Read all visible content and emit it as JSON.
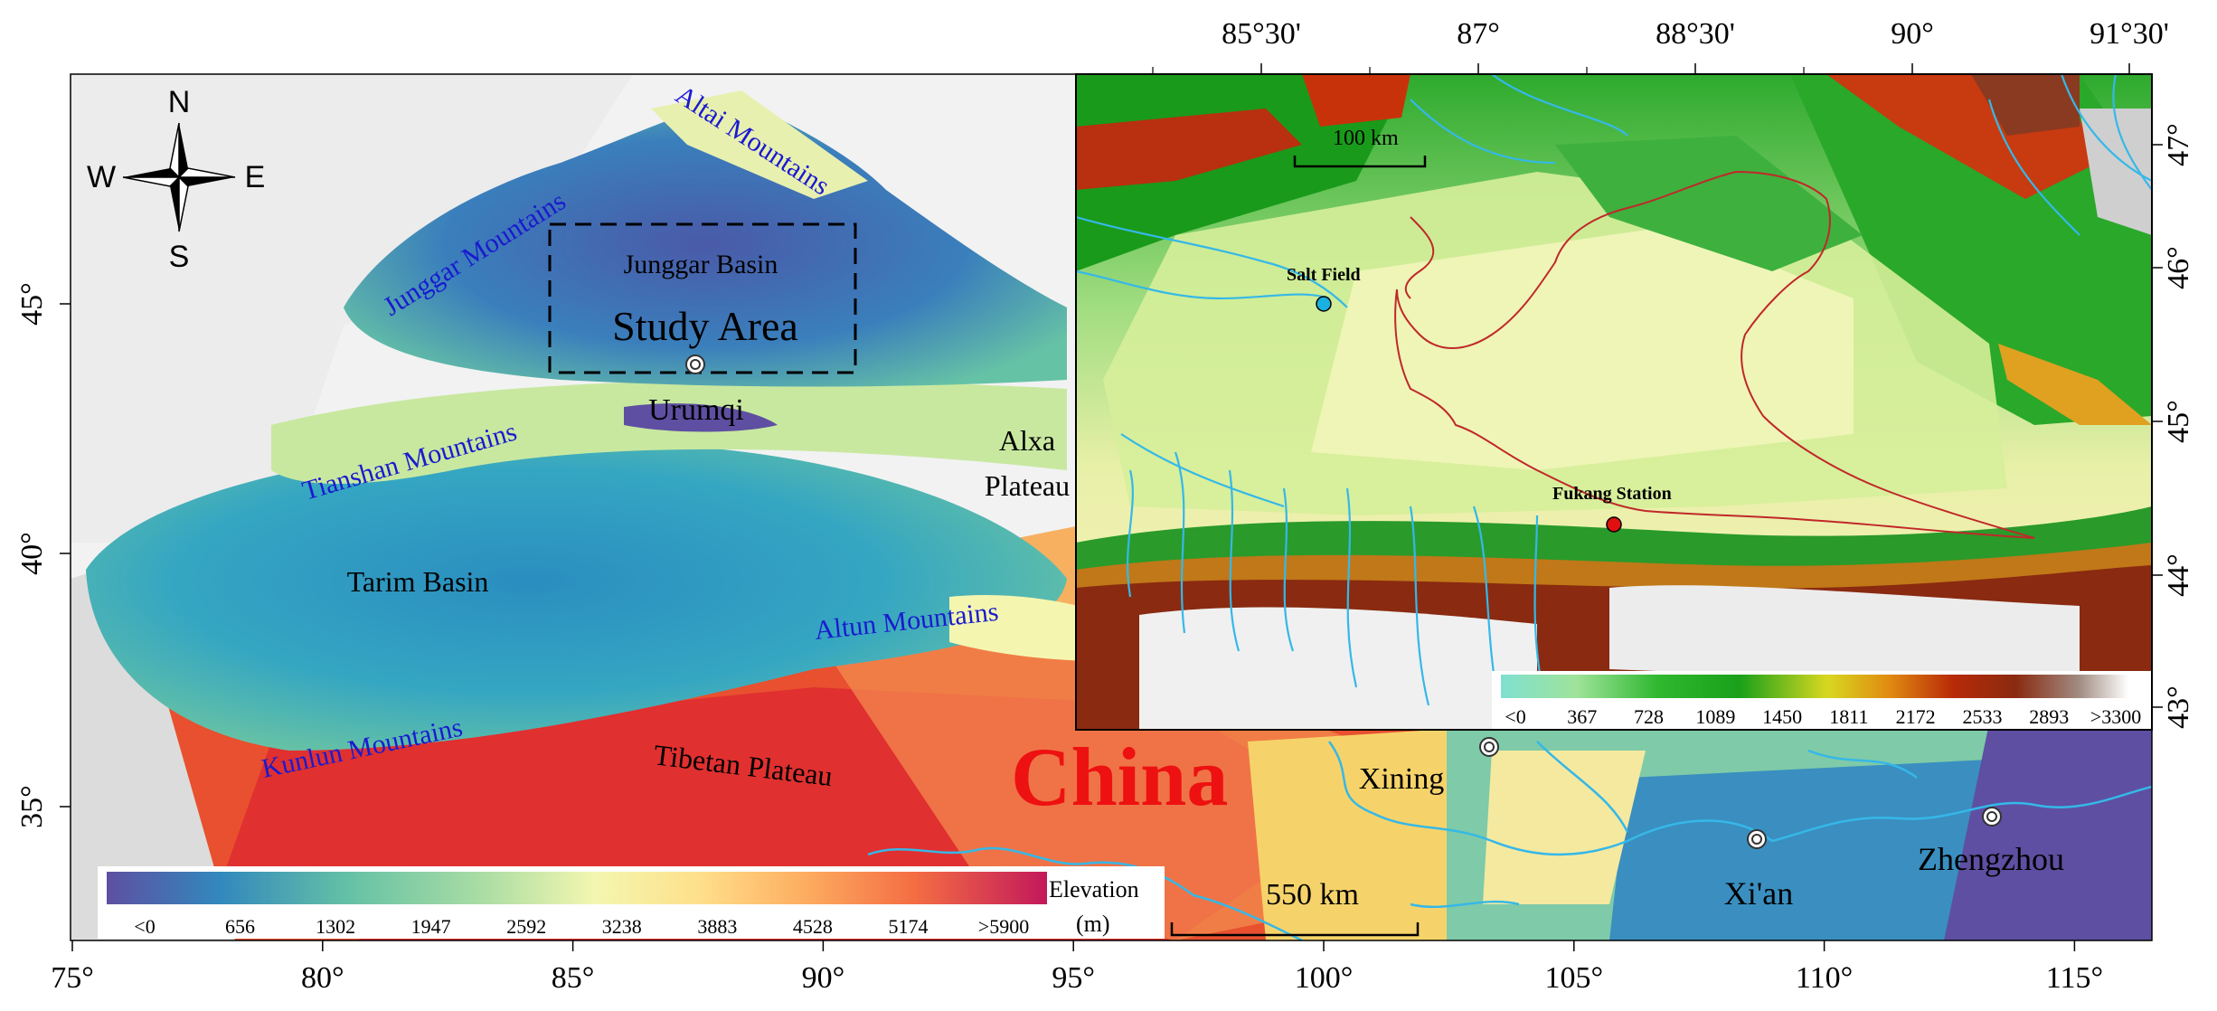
{
  "main_map": {
    "axes": {
      "x_ticks": [
        "75°",
        "80°",
        "85°",
        "90°",
        "95°",
        "100°",
        "105°",
        "110°",
        "115°"
      ],
      "y_ticks": [
        "45°",
        "40°",
        "35°"
      ]
    },
    "compass": {
      "n": "N",
      "s": "S",
      "e": "E",
      "w": "W"
    },
    "labels": {
      "junggar_basin": "Junggar Basin",
      "study_area": "Study Area",
      "urumqi": "Urumqi",
      "tarim_basin": "Tarim Basin",
      "alxa_plateau_1": "Alxa",
      "alxa_plateau_2": "Plateau",
      "tibetan_plateau": "Tibetan Plateau",
      "china": "China",
      "xining": "Xining",
      "xian": "Xi'an",
      "zhengzhou": "Zhengzhou"
    },
    "mountains": {
      "altai": "Altai Mountains",
      "junggar": "Junggar Mountains",
      "tianshan": "Tianshan Mountains",
      "altun": "Altun Mountains",
      "kunlun": "Kunlun Mountains"
    },
    "scale_bar": "550 km",
    "legend": {
      "title_1": "Elevation",
      "title_2": "(m)",
      "ticks": [
        "<0",
        "656",
        "1302",
        "1947",
        "2592",
        "3238",
        "3883",
        "4528",
        "5174",
        ">5900"
      ]
    }
  },
  "inset_map": {
    "axes": {
      "x_ticks": [
        "85°30'",
        "87°",
        "88°30'",
        "90°",
        "91°30'"
      ],
      "y_ticks": [
        "47°",
        "46°",
        "45°",
        "44°",
        "43°"
      ]
    },
    "labels": {
      "salt_field": "Salt Field",
      "fukang_station": "Fukang Station"
    },
    "scale_bar": "100 km",
    "legend": {
      "ticks": [
        "<0",
        "367",
        "728",
        "1089",
        "1450",
        "1811",
        "2172",
        "2533",
        "2893",
        ">3300"
      ]
    },
    "colors": {
      "salt_field_marker": "#1ab0e0",
      "fukang_marker": "#e01010",
      "boundary": "#c0282a",
      "rivers": "#35b8e8"
    }
  }
}
